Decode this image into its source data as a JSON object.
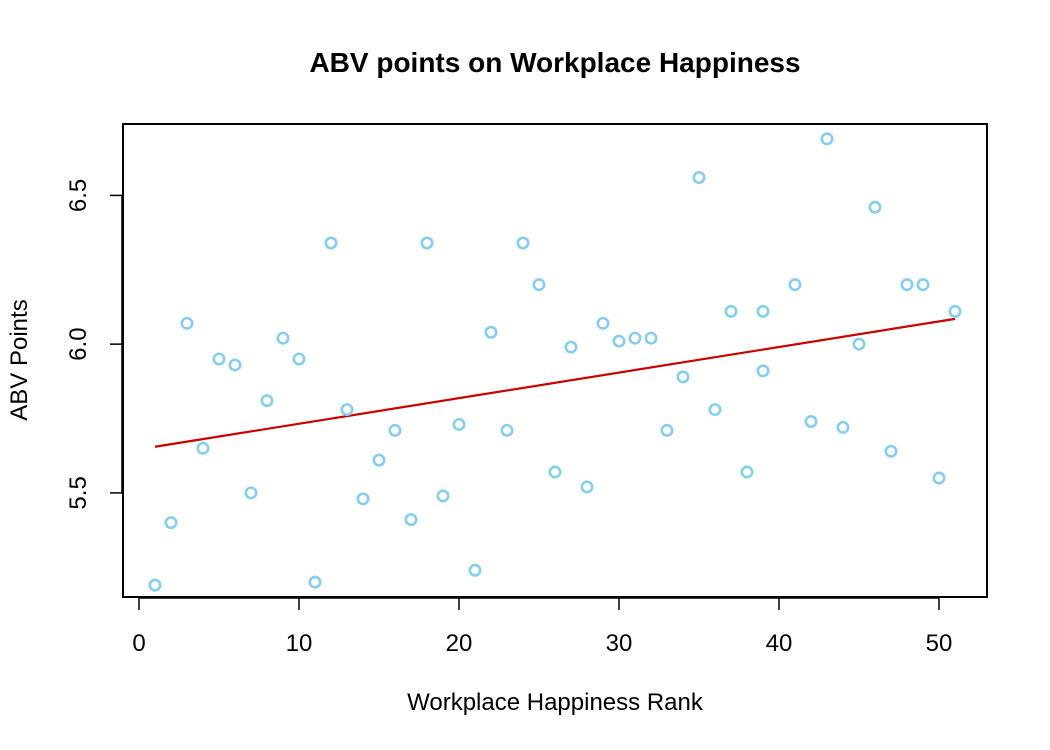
{
  "chart_data": {
    "type": "scatter",
    "title": "ABV points on Workplace Happiness",
    "xlabel": "Workplace Happiness Rank",
    "ylabel": "ABV Points",
    "xlim": [
      -1,
      53
    ],
    "ylim": [
      5.15,
      6.74
    ],
    "x_ticks": [
      0,
      10,
      20,
      30,
      40,
      50
    ],
    "y_ticks": [
      5.5,
      6.0,
      6.5
    ],
    "y_tick_labels": [
      "5.5",
      "6.0",
      "6.5"
    ],
    "grid": false,
    "legend": "none",
    "point_color": "#87ceeb",
    "line_color": "#cc0000",
    "points": [
      {
        "x": 1,
        "y": 5.19
      },
      {
        "x": 2,
        "y": 5.4
      },
      {
        "x": 3,
        "y": 6.07
      },
      {
        "x": 4,
        "y": 5.65
      },
      {
        "x": 5,
        "y": 5.95
      },
      {
        "x": 6,
        "y": 5.93
      },
      {
        "x": 7,
        "y": 5.5
      },
      {
        "x": 8,
        "y": 5.81
      },
      {
        "x": 9,
        "y": 6.02
      },
      {
        "x": 10,
        "y": 5.95
      },
      {
        "x": 11,
        "y": 5.2
      },
      {
        "x": 12,
        "y": 6.34
      },
      {
        "x": 13,
        "y": 5.78
      },
      {
        "x": 14,
        "y": 5.48
      },
      {
        "x": 15,
        "y": 5.61
      },
      {
        "x": 16,
        "y": 5.71
      },
      {
        "x": 17,
        "y": 5.41
      },
      {
        "x": 18,
        "y": 6.34
      },
      {
        "x": 19,
        "y": 5.49
      },
      {
        "x": 20,
        "y": 5.73
      },
      {
        "x": 21,
        "y": 5.24
      },
      {
        "x": 22,
        "y": 6.04
      },
      {
        "x": 23,
        "y": 5.71
      },
      {
        "x": 24,
        "y": 6.34
      },
      {
        "x": 25,
        "y": 6.2
      },
      {
        "x": 26,
        "y": 5.57
      },
      {
        "x": 27,
        "y": 5.99
      },
      {
        "x": 28,
        "y": 5.52
      },
      {
        "x": 29,
        "y": 6.07
      },
      {
        "x": 30,
        "y": 6.01
      },
      {
        "x": 31,
        "y": 6.02
      },
      {
        "x": 32,
        "y": 6.02
      },
      {
        "x": 33,
        "y": 5.71
      },
      {
        "x": 34,
        "y": 5.89
      },
      {
        "x": 35,
        "y": 6.56
      },
      {
        "x": 36,
        "y": 5.78
      },
      {
        "x": 37,
        "y": 6.11
      },
      {
        "x": 38,
        "y": 5.57
      },
      {
        "x": 39,
        "y": 6.11
      },
      {
        "x": 39,
        "y": 5.91
      },
      {
        "x": 41,
        "y": 6.2
      },
      {
        "x": 42,
        "y": 5.74
      },
      {
        "x": 43,
        "y": 6.69
      },
      {
        "x": 44,
        "y": 5.72
      },
      {
        "x": 45,
        "y": 6.0
      },
      {
        "x": 46,
        "y": 6.46
      },
      {
        "x": 47,
        "y": 5.64
      },
      {
        "x": 48,
        "y": 6.2
      },
      {
        "x": 49,
        "y": 6.2
      },
      {
        "x": 50,
        "y": 5.55
      },
      {
        "x": 51,
        "y": 6.11
      }
    ],
    "trend_line": {
      "x": [
        1,
        51
      ],
      "y": [
        5.655,
        6.085
      ]
    }
  }
}
